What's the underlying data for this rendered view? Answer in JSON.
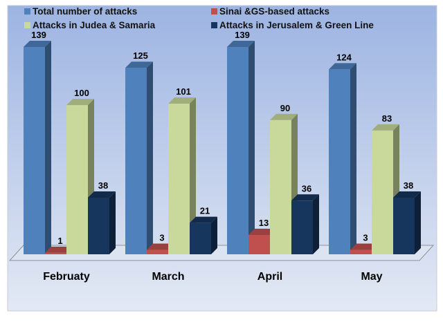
{
  "chart_data": {
    "type": "bar",
    "title": "",
    "xlabel": "",
    "ylabel": "",
    "ylim": [
      0,
      140
    ],
    "grid": false,
    "legend_position": "top",
    "categories": [
      "Februaty",
      "March",
      "April",
      "May"
    ],
    "series": [
      {
        "name": "Total number of attacks",
        "color": "#4f81bd",
        "values": [
          139,
          125,
          139,
          124
        ]
      },
      {
        "name": "Sinai &GS-based attacks",
        "color": "#c0504d",
        "values": [
          1,
          3,
          13,
          3
        ]
      },
      {
        "name": "Attacks in Judea & Samaria",
        "color": "#c8d99b",
        "values": [
          100,
          101,
          90,
          83
        ]
      },
      {
        "name": "Attacks in Jerusalem & Green Line",
        "color": "#17365d",
        "values": [
          38,
          21,
          36,
          38
        ]
      }
    ]
  }
}
